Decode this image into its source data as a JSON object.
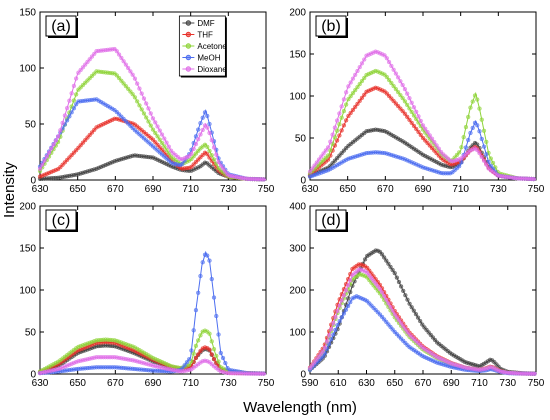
{
  "figure": {
    "ylabel": "Intensity",
    "xlabel": "Wavelength (nm)"
  },
  "colors": {
    "DMF": "#444444",
    "THF": "#e8322b",
    "Acetone": "#8fd43a",
    "MeOH": "#4d6ef0",
    "Dioxane": "#e06fe8"
  },
  "chart_data": [
    {
      "type": "line",
      "panel_label": "(a)",
      "xlim": [
        630,
        750
      ],
      "ylim": [
        0,
        150
      ],
      "xticks": [
        "630",
        "650",
        "670",
        "690",
        "710",
        "730",
        "750"
      ],
      "yticks": [
        "0",
        "50",
        "100",
        "150"
      ],
      "legend": {
        "placement": "top-center",
        "entries": [
          "DMF",
          "THF",
          "Acetone",
          "MeOH",
          "Dioxane"
        ]
      },
      "series": [
        {
          "name": "DMF",
          "x": [
            630,
            640,
            650,
            660,
            670,
            680,
            690,
            700,
            705,
            710,
            715,
            718,
            720,
            725,
            730,
            740,
            750
          ],
          "y": [
            1,
            2,
            5,
            10,
            17,
            22,
            20,
            12,
            9,
            8,
            12,
            16,
            13,
            6,
            3,
            1,
            0.5
          ]
        },
        {
          "name": "THF",
          "x": [
            630,
            640,
            650,
            660,
            670,
            680,
            690,
            700,
            705,
            710,
            715,
            718,
            720,
            725,
            730,
            740,
            750
          ],
          "y": [
            3,
            10,
            28,
            47,
            55,
            50,
            36,
            17,
            10,
            11,
            20,
            25,
            20,
            8,
            3,
            1,
            0.5
          ]
        },
        {
          "name": "Acetone",
          "x": [
            630,
            640,
            650,
            660,
            670,
            680,
            690,
            700,
            705,
            710,
            715,
            718,
            720,
            725,
            730,
            740,
            750
          ],
          "y": [
            8,
            35,
            80,
            97,
            95,
            75,
            45,
            20,
            14,
            18,
            28,
            32,
            26,
            10,
            3,
            1,
            0.5
          ]
        },
        {
          "name": "MeOH",
          "x": [
            630,
            640,
            650,
            660,
            670,
            680,
            690,
            700,
            705,
            710,
            715,
            718,
            720,
            725,
            730,
            740,
            750
          ],
          "y": [
            12,
            40,
            70,
            72,
            62,
            45,
            30,
            15,
            13,
            25,
            50,
            62,
            50,
            18,
            5,
            1,
            0.5
          ]
        },
        {
          "name": "Dioxane",
          "x": [
            630,
            640,
            650,
            660,
            670,
            680,
            690,
            700,
            705,
            710,
            715,
            718,
            720,
            725,
            730,
            740,
            750
          ],
          "y": [
            10,
            40,
            95,
            115,
            117,
            92,
            55,
            25,
            18,
            22,
            40,
            50,
            42,
            15,
            4,
            1,
            0.5
          ]
        }
      ]
    },
    {
      "type": "line",
      "panel_label": "(b)",
      "xlim": [
        630,
        750
      ],
      "ylim": [
        0,
        200
      ],
      "xticks": [
        "630",
        "650",
        "670",
        "690",
        "710",
        "730",
        "750"
      ],
      "yticks": [
        "0",
        "50",
        "100",
        "150",
        "200"
      ],
      "series": [
        {
          "name": "DMF",
          "x": [
            630,
            640,
            650,
            660,
            665,
            670,
            680,
            690,
            700,
            705,
            710,
            715,
            718,
            720,
            725,
            730,
            740,
            750
          ],
          "y": [
            5,
            15,
            40,
            58,
            60,
            58,
            45,
            30,
            18,
            15,
            20,
            38,
            45,
            38,
            15,
            5,
            2,
            1
          ]
        },
        {
          "name": "THF",
          "x": [
            630,
            640,
            650,
            660,
            665,
            670,
            680,
            690,
            700,
            705,
            710,
            715,
            718,
            720,
            725,
            730,
            740,
            750
          ],
          "y": [
            6,
            25,
            75,
            105,
            110,
            105,
            80,
            50,
            25,
            18,
            22,
            35,
            40,
            34,
            14,
            5,
            2,
            1
          ]
        },
        {
          "name": "Acetone",
          "x": [
            630,
            640,
            650,
            660,
            665,
            670,
            680,
            690,
            700,
            705,
            710,
            715,
            718,
            720,
            725,
            730,
            740,
            750
          ],
          "y": [
            8,
            30,
            95,
            125,
            130,
            125,
            95,
            60,
            30,
            22,
            35,
            85,
            103,
            85,
            30,
            8,
            2,
            1
          ]
        },
        {
          "name": "MeOH",
          "x": [
            630,
            640,
            650,
            660,
            665,
            670,
            680,
            690,
            700,
            705,
            710,
            715,
            718,
            720,
            725,
            730,
            740,
            750
          ],
          "y": [
            4,
            12,
            25,
            32,
            33,
            32,
            25,
            15,
            8,
            8,
            18,
            55,
            70,
            58,
            20,
            5,
            2,
            1
          ]
        },
        {
          "name": "Dioxane",
          "x": [
            630,
            640,
            650,
            660,
            665,
            670,
            680,
            690,
            700,
            705,
            710,
            715,
            718,
            720,
            725,
            730,
            740,
            750
          ],
          "y": [
            10,
            40,
            110,
            148,
            153,
            148,
            110,
            65,
            32,
            22,
            25,
            35,
            38,
            32,
            13,
            5,
            2,
            1
          ]
        }
      ]
    },
    {
      "type": "line",
      "panel_label": "(c)",
      "xlim": [
        630,
        750
      ],
      "ylim": [
        0,
        200
      ],
      "xticks": [
        "630",
        "650",
        "670",
        "690",
        "710",
        "730",
        "750"
      ],
      "yticks": [
        "0",
        "50",
        "100",
        "150",
        "200"
      ],
      "series": [
        {
          "name": "DMF",
          "x": [
            630,
            640,
            650,
            660,
            665,
            670,
            680,
            690,
            700,
            705,
            710,
            713,
            716,
            718,
            720,
            723,
            726,
            730,
            740,
            750
          ],
          "y": [
            2,
            10,
            25,
            33,
            34,
            33,
            25,
            15,
            7,
            5,
            8,
            20,
            28,
            30,
            28,
            15,
            6,
            2,
            1,
            0.5
          ]
        },
        {
          "name": "THF",
          "x": [
            630,
            640,
            650,
            660,
            665,
            670,
            680,
            690,
            700,
            705,
            710,
            713,
            716,
            718,
            720,
            723,
            726,
            730,
            740,
            750
          ],
          "y": [
            2,
            12,
            28,
            37,
            38,
            37,
            28,
            17,
            8,
            6,
            8,
            20,
            30,
            32,
            29,
            15,
            6,
            2,
            1,
            0.5
          ]
        },
        {
          "name": "Acetone",
          "x": [
            630,
            640,
            650,
            660,
            665,
            670,
            680,
            690,
            700,
            705,
            710,
            713,
            716,
            718,
            720,
            723,
            726,
            730,
            740,
            750
          ],
          "y": [
            3,
            15,
            32,
            40,
            41,
            40,
            32,
            19,
            9,
            7,
            12,
            35,
            50,
            52,
            48,
            25,
            8,
            3,
            1,
            0.5
          ]
        },
        {
          "name": "MeOH",
          "x": [
            630,
            640,
            650,
            660,
            665,
            670,
            680,
            690,
            700,
            705,
            710,
            713,
            716,
            718,
            720,
            723,
            726,
            730,
            740,
            750
          ],
          "y": [
            1,
            3,
            6,
            8,
            8,
            8,
            6,
            4,
            3,
            5,
            20,
            80,
            130,
            145,
            135,
            80,
            25,
            5,
            1,
            0.5
          ]
        },
        {
          "name": "Dioxane",
          "x": [
            630,
            640,
            650,
            660,
            665,
            670,
            680,
            690,
            700,
            705,
            710,
            713,
            716,
            718,
            720,
            723,
            726,
            730,
            740,
            750
          ],
          "y": [
            1,
            6,
            15,
            20,
            20,
            20,
            16,
            10,
            5,
            3,
            5,
            10,
            15,
            16,
            14,
            8,
            3,
            1,
            0.5,
            0.3
          ]
        }
      ]
    },
    {
      "type": "line",
      "panel_label": "(d)",
      "xlim": [
        590,
        750
      ],
      "ylim": [
        0,
        400
      ],
      "xticks": [
        "590",
        "610",
        "630",
        "650",
        "670",
        "690",
        "710",
        "730",
        "750"
      ],
      "yticks": [
        "0",
        "100",
        "200",
        "300",
        "400"
      ],
      "series": [
        {
          "name": "DMF",
          "x": [
            590,
            600,
            610,
            620,
            630,
            637,
            640,
            650,
            660,
            670,
            680,
            690,
            700,
            710,
            715,
            718,
            720,
            725,
            730,
            740,
            750
          ],
          "y": [
            10,
            40,
            110,
            210,
            280,
            295,
            290,
            240,
            170,
            115,
            75,
            48,
            28,
            18,
            28,
            35,
            30,
            12,
            5,
            2,
            1
          ]
        },
        {
          "name": "THF",
          "x": [
            590,
            600,
            610,
            620,
            625,
            630,
            640,
            650,
            660,
            670,
            680,
            690,
            700,
            710,
            715,
            718,
            720,
            725,
            730,
            740,
            750
          ],
          "y": [
            15,
            65,
            170,
            250,
            262,
            255,
            210,
            150,
            100,
            65,
            42,
            26,
            15,
            10,
            14,
            18,
            15,
            7,
            3,
            1,
            0.5
          ]
        },
        {
          "name": "Acetone",
          "x": [
            590,
            600,
            610,
            620,
            625,
            630,
            640,
            650,
            660,
            670,
            680,
            690,
            700,
            710,
            715,
            718,
            720,
            725,
            730,
            740,
            750
          ],
          "y": [
            12,
            55,
            150,
            225,
            238,
            232,
            190,
            135,
            90,
            58,
            38,
            24,
            14,
            9,
            12,
            16,
            13,
            6,
            3,
            1,
            0.5
          ]
        },
        {
          "name": "MeOH",
          "x": [
            590,
            600,
            610,
            620,
            623,
            630,
            640,
            650,
            660,
            670,
            680,
            690,
            700,
            710,
            715,
            718,
            720,
            725,
            730,
            740,
            750
          ],
          "y": [
            10,
            45,
            120,
            180,
            185,
            175,
            140,
            100,
            65,
            42,
            27,
            17,
            10,
            7,
            9,
            12,
            10,
            5,
            2,
            1,
            0.5
          ]
        },
        {
          "name": "Dioxane",
          "x": [
            590,
            600,
            610,
            620,
            625,
            630,
            640,
            650,
            660,
            670,
            680,
            690,
            700,
            710,
            715,
            718,
            720,
            725,
            730,
            740,
            750
          ],
          "y": [
            14,
            58,
            155,
            235,
            250,
            243,
            200,
            142,
            95,
            62,
            40,
            25,
            15,
            10,
            13,
            17,
            14,
            6,
            3,
            1,
            0.5
          ]
        }
      ]
    }
  ]
}
